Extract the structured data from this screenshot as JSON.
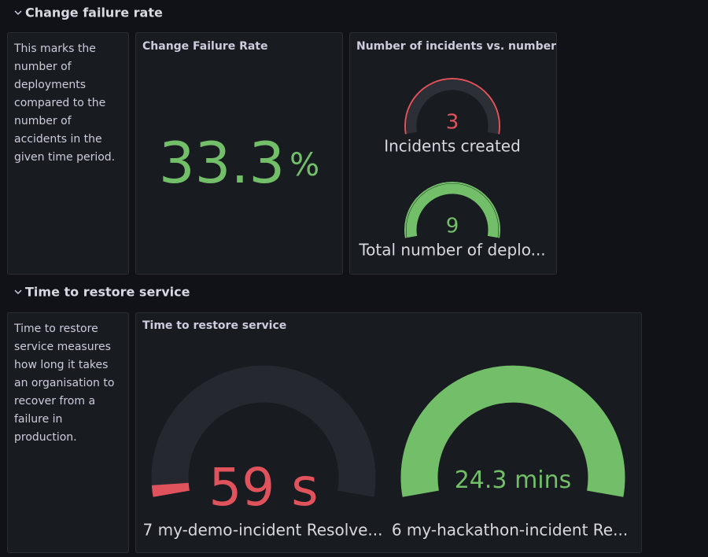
{
  "rows": [
    {
      "title": "Change failure rate",
      "description": [
        "This marks the",
        "number of",
        "deployments",
        "compared to the",
        "number of",
        "accidents in the",
        "given time period."
      ],
      "stat": {
        "title": "Change Failure Rate",
        "value": 33.3,
        "unit": "%"
      },
      "gauges": {
        "title": "Number of incidents vs. number",
        "items": [
          {
            "value": 3,
            "label": "Incidents created"
          },
          {
            "value": 9,
            "label": "Total number of deplo..."
          }
        ]
      }
    },
    {
      "title": "Time to restore service",
      "description": [
        "Time to restore",
        "service measures",
        "how long it takes",
        "an organisation to",
        "recover from a",
        "failure in",
        "production."
      ],
      "gauges": {
        "title": "Time to restore service",
        "items": [
          {
            "value": 59,
            "unit": "s",
            "label": "7 my-demo-incident Resolve..."
          },
          {
            "value": 24.3,
            "unit": "mins",
            "label": "6 my-hackathon-incident Re..."
          }
        ]
      }
    }
  ]
}
